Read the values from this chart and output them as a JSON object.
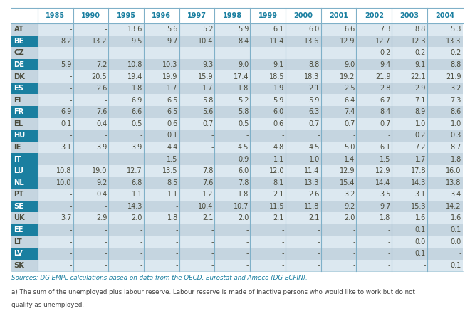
{
  "columns": [
    "",
    "1985",
    "1990",
    "1995",
    "1996",
    "1997",
    "1998",
    "1999",
    "2000",
    "2001",
    "2002",
    "2003",
    "2004"
  ],
  "rows": [
    [
      "AT",
      "-",
      "-",
      "13.6",
      "5.6",
      "5.2",
      "5.9",
      "6.1",
      "6.0",
      "6.6",
      "7.3",
      "8.8",
      "5.3"
    ],
    [
      "BE",
      "8.2",
      "13.2",
      "9.5",
      "9.7",
      "10.4",
      "8.4",
      "11.4",
      "13.6",
      "12.9",
      "12.7",
      "12.3",
      "13.3"
    ],
    [
      "CZ",
      "-",
      "-",
      "-",
      "-",
      "-",
      "-",
      "-",
      "-",
      "-",
      "0.2",
      "0.2",
      "0.2"
    ],
    [
      "DE",
      "5.9",
      "7.2",
      "10.8",
      "10.3",
      "9.3",
      "9.0",
      "9.1",
      "8.8",
      "9.0",
      "9.4",
      "9.1",
      "8.8"
    ],
    [
      "DK",
      "-",
      "20.5",
      "19.4",
      "19.9",
      "15.9",
      "17.4",
      "18.5",
      "18.3",
      "19.2",
      "21.9",
      "22.1",
      "21.9"
    ],
    [
      "ES",
      "-",
      "2.6",
      "1.8",
      "1.7",
      "1.7",
      "1.8",
      "1.9",
      "2.1",
      "2.5",
      "2.8",
      "2.9",
      "3.2"
    ],
    [
      "FI",
      "-",
      "-",
      "6.9",
      "6.5",
      "5.8",
      "5.2",
      "5.9",
      "5.9",
      "6.4",
      "6.7",
      "7.1",
      "7.3"
    ],
    [
      "FR",
      "6.9",
      "7.6",
      "6.6",
      "6.5",
      "5.6",
      "5.8",
      "6.0",
      "6.3",
      "7.4",
      "8.4",
      "8.9",
      "8.6"
    ],
    [
      "EL",
      "0.1",
      "0.4",
      "0.5",
      "0.6",
      "0.7",
      "0.5",
      "0.6",
      "0.7",
      "0.7",
      "0.7",
      "1.0",
      "1.0"
    ],
    [
      "HU",
      "-",
      "-",
      "-",
      "0.1",
      "-",
      "-",
      "-",
      "-",
      "-",
      "-",
      "0.2",
      "0.3"
    ],
    [
      "IE",
      "3.1",
      "3.9",
      "3.9",
      "4.4",
      "-",
      "4.5",
      "4.8",
      "4.5",
      "5.0",
      "6.1",
      "7.2",
      "8.7"
    ],
    [
      "IT",
      "-",
      "-",
      "-",
      "1.5",
      "-",
      "0.9",
      "1.1",
      "1.0",
      "1.4",
      "1.5",
      "1.7",
      "1.8"
    ],
    [
      "LU",
      "10.8",
      "19.0",
      "12.7",
      "13.5",
      "7.8",
      "6.0",
      "12.0",
      "11.4",
      "12.9",
      "12.9",
      "17.8",
      "16.0"
    ],
    [
      "NL",
      "10.0",
      "9.2",
      "6.8",
      "8.5",
      "7.6",
      "7.8",
      "8.1",
      "13.3",
      "15.4",
      "14.4",
      "14.3",
      "13.8"
    ],
    [
      "PT",
      "-",
      "0.4",
      "1.1",
      "1.1",
      "1.2",
      "1.8",
      "2.1",
      "2.6",
      "3.2",
      "3.5",
      "3.1",
      "3.4"
    ],
    [
      "SE",
      "-",
      "-",
      "14.3",
      "-",
      "10.4",
      "10.7",
      "11.5",
      "11.8",
      "9.2",
      "9.7",
      "15.3",
      "14.2"
    ],
    [
      "UK",
      "3.7",
      "2.9",
      "2.0",
      "1.8",
      "2.1",
      "2.0",
      "2.1",
      "2.1",
      "2.0",
      "1.8",
      "1.6",
      "1.6"
    ],
    [
      "EE",
      "-",
      "-",
      "-",
      "-",
      "-",
      "-",
      "-",
      "-",
      "-",
      "-",
      "0.1",
      "0.1"
    ],
    [
      "LT",
      "-",
      "-",
      "-",
      "-",
      "-",
      "-",
      "-",
      "-",
      "-",
      "-",
      "0.0",
      "0.0"
    ],
    [
      "LV",
      "-",
      "-",
      "-",
      "-",
      "-",
      "-",
      "-",
      "-",
      "-",
      "-",
      "0.1",
      "-"
    ],
    [
      "SK",
      "-",
      "-",
      "-",
      "-",
      "-",
      "-",
      "-",
      "-",
      "-",
      "-",
      "-",
      "0.1"
    ]
  ],
  "highlighted_rows": [
    "BE",
    "DE",
    "ES",
    "FR",
    "HU",
    "IT",
    "LU",
    "NL",
    "SE",
    "EE",
    "LV"
  ],
  "header_bg": "#ffffff",
  "header_fg": "#1a7fa0",
  "teal_bg": "#1a7fa0",
  "teal_fg": "#ffffff",
  "light_bg": "#c5d5e0",
  "data_bg": "#dce8f0",
  "data_fg": "#4a4a3a",
  "sep_color": "#7fb0c8",
  "footer_text_1": "Sources: DG EMPL calculations based on data from the OECD, Eurostat and Ameco (DG ECFIN).",
  "footer_text_2": "a) The sum of the unemployed plus labour reserve. Labour reserve is made of inactive persons who would like to work but do not",
  "footer_text_3": "qualify as unemployed."
}
